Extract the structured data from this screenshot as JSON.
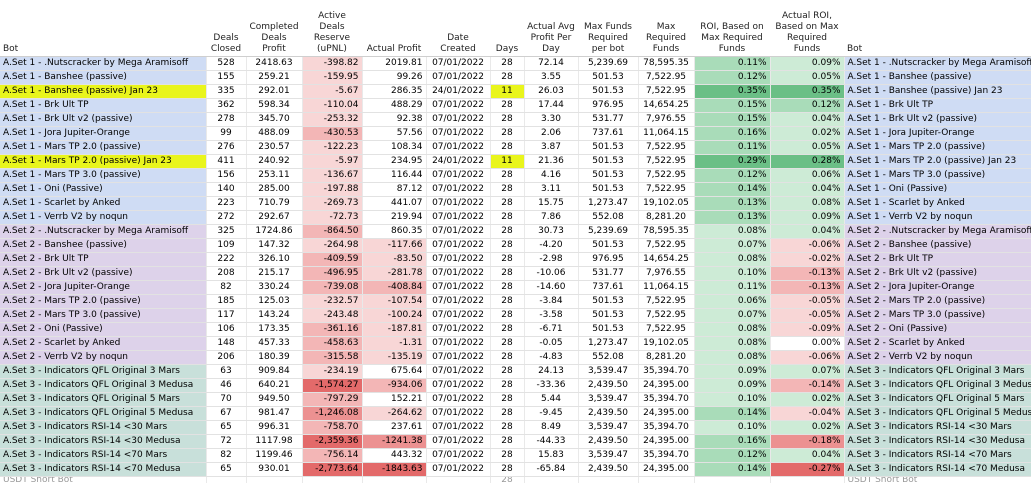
{
  "headers": [
    "Bot",
    "Deals Closed",
    "Completed Deals Profit",
    "Active Deals Reserve (uPNL)",
    "Actual Profit",
    "Date Created",
    "Days",
    "Actual Avg Profit Per Day",
    "Max Funds Required per bot",
    "Max Required Funds",
    "ROI, Based on Max Required Funds",
    "Actual ROI, Based on Max Required Funds",
    "Bot"
  ],
  "rows": [
    {
      "set": 1,
      "hl": false,
      "bot": "A.Set 1 - .Nutscracker by Mega Aramisoff",
      "deals": "528",
      "completed": "2418.63",
      "reserve": "-398.82",
      "profit": "2019.81",
      "date": "07/01/2022",
      "days": "28",
      "avg": "72.14",
      "maxbot": "5,239.69",
      "maxreq": "78,595.35",
      "roi": "0.11%",
      "aroi": "0.09%",
      "bot2": "A.Set 1 - .Nutscracker by Mega Aramisoff",
      "rl": 1,
      "pl": 0,
      "ol": 2,
      "al": 1
    },
    {
      "set": 1,
      "hl": false,
      "bot": "A.Set 1 - Banshee (passive)",
      "deals": "155",
      "completed": "259.21",
      "reserve": "-159.95",
      "profit": "99.26",
      "date": "07/01/2022",
      "days": "28",
      "avg": "3.55",
      "maxbot": "501.53",
      "maxreq": "7,522.95",
      "roi": "0.12%",
      "aroi": "0.05%",
      "bot2": "A.Set 1 - Banshee (passive)",
      "rl": 1,
      "pl": 0,
      "ol": 2,
      "al": 1
    },
    {
      "set": 1,
      "hl": true,
      "bot": "A.Set 1 - Banshee (passive) Jan 23",
      "deals": "335",
      "completed": "292.01",
      "reserve": "-5.67",
      "profit": "286.35",
      "date": "24/01/2022",
      "days": "11",
      "avg": "26.03",
      "maxbot": "501.53",
      "maxreq": "7,522.95",
      "roi": "0.35%",
      "aroi": "0.35%",
      "bot2": "A.Set 1 - Banshee (passive) Jan 23",
      "rl": 1,
      "pl": 0,
      "ol": 4,
      "al": 4
    },
    {
      "set": 1,
      "hl": false,
      "bot": "A.Set 1 - Brk Ult TP",
      "deals": "362",
      "completed": "598.34",
      "reserve": "-110.04",
      "profit": "488.29",
      "date": "07/01/2022",
      "days": "28",
      "avg": "17.44",
      "maxbot": "976.95",
      "maxreq": "14,654.25",
      "roi": "0.15%",
      "aroi": "0.12%",
      "bot2": "A.Set 1 - Brk Ult TP",
      "rl": 1,
      "pl": 0,
      "ol": 2,
      "al": 2
    },
    {
      "set": 1,
      "hl": false,
      "bot": "A.Set 1 - Brk Ult v2 (passive)",
      "deals": "278",
      "completed": "345.70",
      "reserve": "-253.32",
      "profit": "92.38",
      "date": "07/01/2022",
      "days": "28",
      "avg": "3.30",
      "maxbot": "531.77",
      "maxreq": "7,976.55",
      "roi": "0.15%",
      "aroi": "0.04%",
      "bot2": "A.Set 1 - Brk Ult v2 (passive)",
      "rl": 1,
      "pl": 0,
      "ol": 2,
      "al": 1
    },
    {
      "set": 1,
      "hl": false,
      "bot": "A.Set 1 - Jora Jupiter-Orange",
      "deals": "99",
      "completed": "488.09",
      "reserve": "-430.53",
      "profit": "57.56",
      "date": "07/01/2022",
      "days": "28",
      "avg": "2.06",
      "maxbot": "737.61",
      "maxreq": "11,064.15",
      "roi": "0.16%",
      "aroi": "0.02%",
      "bot2": "A.Set 1 - Jora Jupiter-Orange",
      "rl": 2,
      "pl": 0,
      "ol": 2,
      "al": 1
    },
    {
      "set": 1,
      "hl": false,
      "bot": "A.Set 1 - Mars TP 2.0 (passive)",
      "deals": "276",
      "completed": "230.57",
      "reserve": "-122.23",
      "profit": "108.34",
      "date": "07/01/2022",
      "days": "28",
      "avg": "3.87",
      "maxbot": "501.53",
      "maxreq": "7,522.95",
      "roi": "0.11%",
      "aroi": "0.05%",
      "bot2": "A.Set 1 - Mars TP 2.0 (passive)",
      "rl": 1,
      "pl": 0,
      "ol": 2,
      "al": 1
    },
    {
      "set": 1,
      "hl": true,
      "bot": "A.Set 1 - Mars TP 2.0 (passive) Jan 23",
      "deals": "411",
      "completed": "240.92",
      "reserve": "-5.97",
      "profit": "234.95",
      "date": "24/01/2022",
      "days": "11",
      "avg": "21.36",
      "maxbot": "501.53",
      "maxreq": "7,522.95",
      "roi": "0.29%",
      "aroi": "0.28%",
      "bot2": "A.Set 1 - Mars TP 2.0 (passive) Jan 23",
      "rl": 1,
      "pl": 0,
      "ol": 4,
      "al": 4
    },
    {
      "set": 1,
      "hl": false,
      "bot": "A.Set 1 - Mars TP 3.0 (passive)",
      "deals": "156",
      "completed": "253.11",
      "reserve": "-136.67",
      "profit": "116.44",
      "date": "07/01/2022",
      "days": "28",
      "avg": "4.16",
      "maxbot": "501.53",
      "maxreq": "7,522.95",
      "roi": "0.12%",
      "aroi": "0.06%",
      "bot2": "A.Set 1 - Mars TP 3.0 (passive)",
      "rl": 1,
      "pl": 0,
      "ol": 2,
      "al": 1
    },
    {
      "set": 1,
      "hl": false,
      "bot": "A.Set 1 - Oni (Passive)",
      "deals": "140",
      "completed": "285.00",
      "reserve": "-197.88",
      "profit": "87.12",
      "date": "07/01/2022",
      "days": "28",
      "avg": "3.11",
      "maxbot": "501.53",
      "maxreq": "7,522.95",
      "roi": "0.14%",
      "aroi": "0.04%",
      "bot2": "A.Set 1 - Oni (Passive)",
      "rl": 1,
      "pl": 0,
      "ol": 2,
      "al": 1
    },
    {
      "set": 1,
      "hl": false,
      "bot": "A.Set 1 - Scarlet by Anked",
      "deals": "223",
      "completed": "710.79",
      "reserve": "-269.73",
      "profit": "441.07",
      "date": "07/01/2022",
      "days": "28",
      "avg": "15.75",
      "maxbot": "1,273.47",
      "maxreq": "19,102.05",
      "roi": "0.13%",
      "aroi": "0.08%",
      "bot2": "A.Set 1 - Scarlet by Anked",
      "rl": 1,
      "pl": 0,
      "ol": 2,
      "al": 1
    },
    {
      "set": 1,
      "hl": false,
      "bot": "A.Set 1 - Verrb V2 by noqun",
      "deals": "272",
      "completed": "292.67",
      "reserve": "-72.73",
      "profit": "219.94",
      "date": "07/01/2022",
      "days": "28",
      "avg": "7.86",
      "maxbot": "552.08",
      "maxreq": "8,281.20",
      "roi": "0.13%",
      "aroi": "0.09%",
      "bot2": "A.Set 1 - Verrb V2 by noqun",
      "rl": 1,
      "pl": 0,
      "ol": 2,
      "al": 1
    },
    {
      "set": 2,
      "hl": false,
      "bot": "A.Set 2 - .Nutscracker by Mega Aramisoff",
      "deals": "325",
      "completed": "1724.86",
      "reserve": "-864.50",
      "profit": "860.35",
      "date": "07/01/2022",
      "days": "28",
      "avg": "30.73",
      "maxbot": "5,239.69",
      "maxreq": "78,595.35",
      "roi": "0.08%",
      "aroi": "0.04%",
      "bot2": "A.Set 2 - .Nutscracker by Mega Aramisoff",
      "rl": 2,
      "pl": 0,
      "ol": 1,
      "al": 1
    },
    {
      "set": 2,
      "hl": false,
      "bot": "A.Set 2 - Banshee (passive)",
      "deals": "109",
      "completed": "147.32",
      "reserve": "-264.98",
      "profit": "-117.66",
      "date": "07/01/2022",
      "days": "28",
      "avg": "-4.20",
      "maxbot": "501.53",
      "maxreq": "7,522.95",
      "roi": "0.07%",
      "aroi": "-0.06%",
      "bot2": "A.Set 2 - Banshee (passive)",
      "rl": 1,
      "pl": 1,
      "ol": 1,
      "al": -1
    },
    {
      "set": 2,
      "hl": false,
      "bot": "A.Set 2 - Brk Ult TP",
      "deals": "222",
      "completed": "326.10",
      "reserve": "-409.59",
      "profit": "-83.50",
      "date": "07/01/2022",
      "days": "28",
      "avg": "-2.98",
      "maxbot": "976.95",
      "maxreq": "14,654.25",
      "roi": "0.08%",
      "aroi": "-0.02%",
      "bot2": "A.Set 2 - Brk Ult TP",
      "rl": 2,
      "pl": 1,
      "ol": 1,
      "al": -1
    },
    {
      "set": 2,
      "hl": false,
      "bot": "A.Set 2 - Brk Ult v2 (passive)",
      "deals": "208",
      "completed": "215.17",
      "reserve": "-496.95",
      "profit": "-281.78",
      "date": "07/01/2022",
      "days": "28",
      "avg": "-10.06",
      "maxbot": "531.77",
      "maxreq": "7,976.55",
      "roi": "0.10%",
      "aroi": "-0.13%",
      "bot2": "A.Set 2 - Brk Ult v2 (passive)",
      "rl": 2,
      "pl": 1,
      "ol": 1,
      "al": -2
    },
    {
      "set": 2,
      "hl": false,
      "bot": "A.Set 2 - Jora Jupiter-Orange",
      "deals": "82",
      "completed": "330.24",
      "reserve": "-739.08",
      "profit": "-408.84",
      "date": "07/01/2022",
      "days": "28",
      "avg": "-14.60",
      "maxbot": "737.61",
      "maxreq": "11,064.15",
      "roi": "0.11%",
      "aroi": "-0.13%",
      "bot2": "A.Set 2 - Jora Jupiter-Orange",
      "rl": 2,
      "pl": 2,
      "ol": 1,
      "al": -2
    },
    {
      "set": 2,
      "hl": false,
      "bot": "A.Set 2 - Mars TP 2.0 (passive)",
      "deals": "185",
      "completed": "125.03",
      "reserve": "-232.57",
      "profit": "-107.54",
      "date": "07/01/2022",
      "days": "28",
      "avg": "-3.84",
      "maxbot": "501.53",
      "maxreq": "7,522.95",
      "roi": "0.06%",
      "aroi": "-0.05%",
      "bot2": "A.Set 2 - Mars TP 2.0 (passive)",
      "rl": 1,
      "pl": 1,
      "ol": 1,
      "al": -1
    },
    {
      "set": 2,
      "hl": false,
      "bot": "A.Set 2 - Mars TP 3.0 (passive)",
      "deals": "117",
      "completed": "143.24",
      "reserve": "-243.48",
      "profit": "-100.24",
      "date": "07/01/2022",
      "days": "28",
      "avg": "-3.58",
      "maxbot": "501.53",
      "maxreq": "7,522.95",
      "roi": "0.07%",
      "aroi": "-0.05%",
      "bot2": "A.Set 2 - Mars TP 3.0 (passive)",
      "rl": 1,
      "pl": 1,
      "ol": 1,
      "al": -1
    },
    {
      "set": 2,
      "hl": false,
      "bot": "A.Set 2 - Oni (Passive)",
      "deals": "106",
      "completed": "173.35",
      "reserve": "-361.16",
      "profit": "-187.81",
      "date": "07/01/2022",
      "days": "28",
      "avg": "-6.71",
      "maxbot": "501.53",
      "maxreq": "7,522.95",
      "roi": "0.08%",
      "aroi": "-0.09%",
      "bot2": "A.Set 2 - Oni (Passive)",
      "rl": 2,
      "pl": 1,
      "ol": 1,
      "al": -1
    },
    {
      "set": 2,
      "hl": false,
      "bot": "A.Set 2 - Scarlet by Anked",
      "deals": "148",
      "completed": "457.33",
      "reserve": "-458.63",
      "profit": "-1.31",
      "date": "07/01/2022",
      "days": "28",
      "avg": "-0.05",
      "maxbot": "1,273.47",
      "maxreq": "19,102.05",
      "roi": "0.08%",
      "aroi": "0.00%",
      "bot2": "A.Set 2 - Scarlet by Anked",
      "rl": 2,
      "pl": 1,
      "ol": 1,
      "al": 0
    },
    {
      "set": 2,
      "hl": false,
      "bot": "A.Set 2 - Verrb V2 by noqun",
      "deals": "206",
      "completed": "180.39",
      "reserve": "-315.58",
      "profit": "-135.19",
      "date": "07/01/2022",
      "days": "28",
      "avg": "-4.83",
      "maxbot": "552.08",
      "maxreq": "8,281.20",
      "roi": "0.08%",
      "aroi": "-0.06%",
      "bot2": "A.Set 2 - Verrb V2 by noqun",
      "rl": 2,
      "pl": 1,
      "ol": 1,
      "al": -1
    },
    {
      "set": 3,
      "hl": false,
      "bot": "A.Set 3 - Indicators QFL Original 3 Mars",
      "deals": "63",
      "completed": "909.84",
      "reserve": "-234.19",
      "profit": "675.64",
      "date": "07/01/2022",
      "days": "28",
      "avg": "24.13",
      "maxbot": "3,539.47",
      "maxreq": "35,394.70",
      "roi": "0.09%",
      "aroi": "0.07%",
      "bot2": "A.Set 3 - Indicators QFL Original 3 Mars",
      "rl": 1,
      "pl": 0,
      "ol": 1,
      "al": 1
    },
    {
      "set": 3,
      "hl": false,
      "bot": "A.Set 3 - Indicators QFL Original 3 Medusa",
      "deals": "46",
      "completed": "640.21",
      "reserve": "-1,574.27",
      "profit": "-934.06",
      "date": "07/01/2022",
      "days": "28",
      "avg": "-33.36",
      "maxbot": "2,439.50",
      "maxreq": "24,395.00",
      "roi": "0.09%",
      "aroi": "-0.14%",
      "bot2": "A.Set 3 - Indicators QFL Original 3 Medusa",
      "rl": 4,
      "pl": 2,
      "ol": 1,
      "al": -2
    },
    {
      "set": 3,
      "hl": false,
      "bot": "A.Set 3 - Indicators QFL Original 5 Mars",
      "deals": "70",
      "completed": "949.50",
      "reserve": "-797.29",
      "profit": "152.21",
      "date": "07/01/2022",
      "days": "28",
      "avg": "5.44",
      "maxbot": "3,539.47",
      "maxreq": "35,394.70",
      "roi": "0.10%",
      "aroi": "0.02%",
      "bot2": "A.Set 3 - Indicators QFL Original 5 Mars",
      "rl": 2,
      "pl": 0,
      "ol": 1,
      "al": 1
    },
    {
      "set": 3,
      "hl": false,
      "bot": "A.Set 3 - Indicators QFL Original 5 Medusa",
      "deals": "67",
      "completed": "981.47",
      "reserve": "-1,246.08",
      "profit": "-264.62",
      "date": "07/01/2022",
      "days": "28",
      "avg": "-9.45",
      "maxbot": "2,439.50",
      "maxreq": "24,395.00",
      "roi": "0.14%",
      "aroi": "-0.04%",
      "bot2": "A.Set 3 - Indicators QFL Original 5 Medusa",
      "rl": 3,
      "pl": 1,
      "ol": 2,
      "al": -1
    },
    {
      "set": 3,
      "hl": false,
      "bot": "A.Set 3 - Indicators RSI-14 <30 Mars",
      "deals": "65",
      "completed": "996.31",
      "reserve": "-758.70",
      "profit": "237.61",
      "date": "07/01/2022",
      "days": "28",
      "avg": "8.49",
      "maxbot": "3,539.47",
      "maxreq": "35,394.70",
      "roi": "0.10%",
      "aroi": "0.02%",
      "bot2": "A.Set 3 - Indicators RSI-14 <30 Mars",
      "rl": 2,
      "pl": 0,
      "ol": 1,
      "al": 1
    },
    {
      "set": 3,
      "hl": false,
      "bot": "A.Set 3 - Indicators RSI-14 <30 Medusa",
      "deals": "72",
      "completed": "1117.98",
      "reserve": "-2,359.36",
      "profit": "-1241.38",
      "date": "07/01/2022",
      "days": "28",
      "avg": "-44.33",
      "maxbot": "2,439.50",
      "maxreq": "24,395.00",
      "roi": "0.16%",
      "aroi": "-0.18%",
      "bot2": "A.Set 3 - Indicators RSI-14 <30 Medusa",
      "rl": 4,
      "pl": 3,
      "ol": 2,
      "al": -3
    },
    {
      "set": 3,
      "hl": false,
      "bot": "A.Set 3 - Indicators RSI-14 <70 Mars",
      "deals": "82",
      "completed": "1199.46",
      "reserve": "-756.14",
      "profit": "443.32",
      "date": "07/01/2022",
      "days": "28",
      "avg": "15.83",
      "maxbot": "3,539.47",
      "maxreq": "35,394.70",
      "roi": "0.12%",
      "aroi": "0.04%",
      "bot2": "A.Set 3 - Indicators RSI-14 <70 Mars",
      "rl": 2,
      "pl": 0,
      "ol": 2,
      "al": 1
    },
    {
      "set": 3,
      "hl": false,
      "bot": "A.Set 3 - Indicators RSI-14 <70 Medusa",
      "deals": "65",
      "completed": "930.01",
      "reserve": "-2,773.64",
      "profit": "-1843.63",
      "date": "07/01/2022",
      "days": "28",
      "avg": "-65.84",
      "maxbot": "2,439.50",
      "maxreq": "24,395.00",
      "roi": "0.14%",
      "aroi": "-0.27%",
      "bot2": "A.Set 3 - Indicators RSI-14 <70 Medusa",
      "rl": 4,
      "pl": 4,
      "ol": 2,
      "al": -4
    }
  ],
  "partial_row": {
    "bot": "USDT Short Bot",
    "days": "28",
    "bot2": "USDT Short Bot"
  },
  "colors": {
    "set1": "#cfdcf4",
    "set2": "#ddd2ea",
    "set3": "#c8e0da",
    "highlight": "#e9f51c"
  }
}
